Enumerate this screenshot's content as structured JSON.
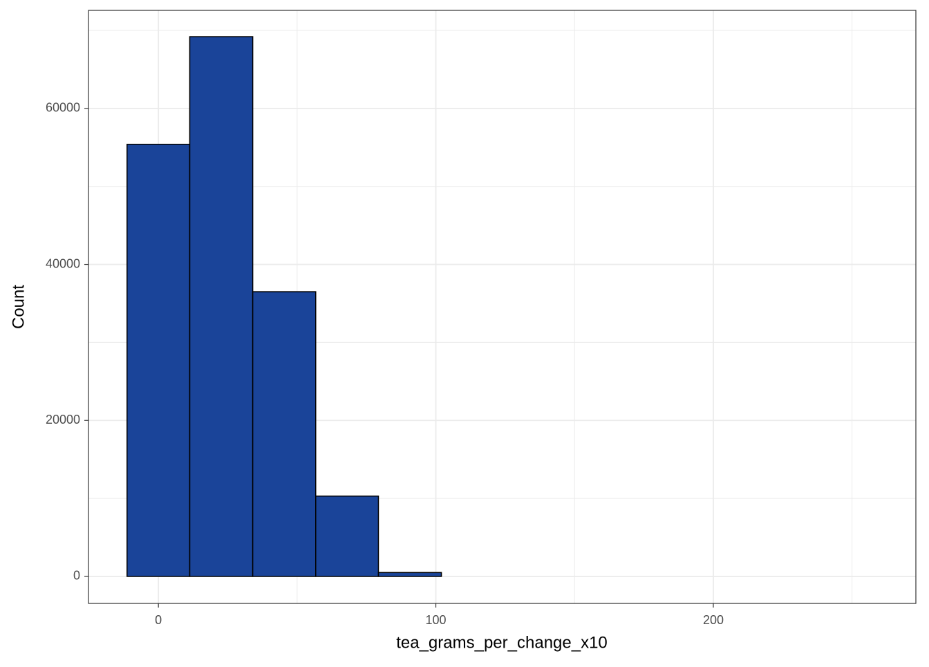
{
  "chart_data": {
    "type": "histogram",
    "x_label": "tea_grams_per_change_x10",
    "y_label": "Count",
    "bins": [
      -11.3,
      11.3,
      34,
      56.7,
      79.3,
      102,
      124.7,
      147.3,
      170,
      192.7,
      215.3,
      238,
      260.7
    ],
    "counts": [
      55400,
      69200,
      36500,
      10300,
      500,
      0,
      0,
      0,
      0,
      0,
      0,
      0
    ],
    "color": "#1a4499",
    "edge_color": "#000000",
    "xlim": [
      -25.2,
      273
    ],
    "ylim": [
      -3460,
      72570
    ],
    "xticks": [
      0,
      100,
      200
    ],
    "yticks": [
      0,
      20000,
      40000,
      60000
    ],
    "x_minor_grid": [
      50,
      150,
      250
    ],
    "y_minor_grid": [
      10000,
      30000,
      50000,
      70000
    ],
    "grid": true
  }
}
